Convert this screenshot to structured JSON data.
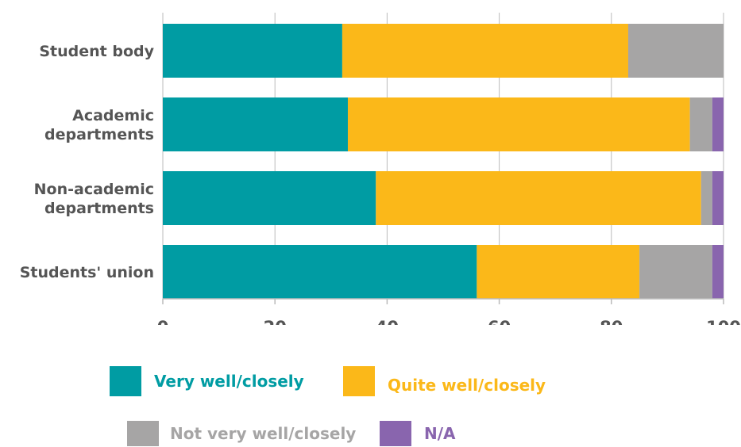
{
  "chart_data": {
    "type": "bar",
    "orientation": "horizontal",
    "stacked": true,
    "categories": [
      [
        "Student body"
      ],
      [
        "Academic",
        "departments"
      ],
      [
        "Non-academic",
        "departments"
      ],
      [
        "Students' union"
      ]
    ],
    "series": [
      {
        "name": "Very well/closely",
        "color": "#009ca3",
        "values": [
          32,
          33,
          38,
          56
        ]
      },
      {
        "name": "Quite well/closely",
        "color": "#fbb819",
        "values": [
          51,
          61,
          58,
          29
        ]
      },
      {
        "name": "Not very well/closely",
        "color": "#a6a5a5",
        "values": [
          17,
          4,
          2,
          13
        ]
      },
      {
        "name": "N/A",
        "color": "#8965ae",
        "values": [
          0,
          2,
          2,
          2
        ]
      }
    ],
    "xlim": [
      0,
      100
    ],
    "xticks": [
      0,
      20,
      40,
      60,
      80,
      100
    ],
    "grid": "vertical",
    "legend_position": "bottom",
    "title": "",
    "xlabel": "",
    "ylabel": ""
  },
  "colors": {
    "axis_text": "#555555",
    "gridline": "#bbbbbb",
    "axis_line": "#bbbbbb"
  }
}
